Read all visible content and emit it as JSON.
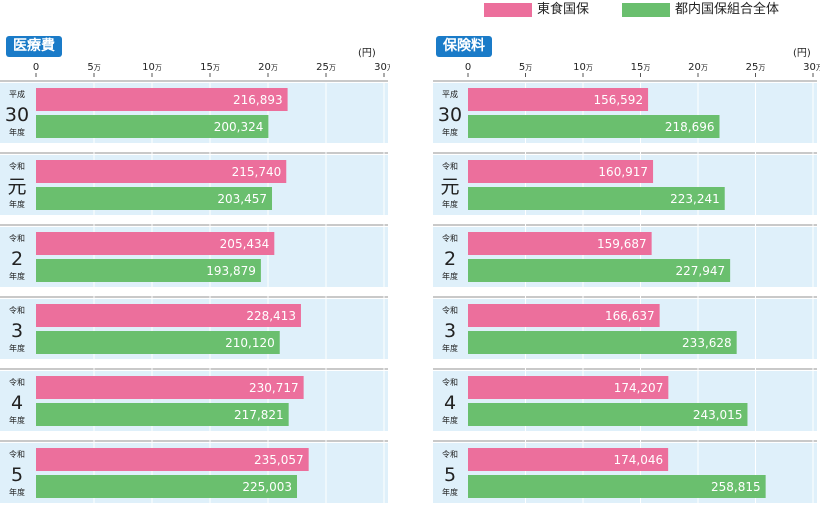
{
  "legend": [
    {
      "label": "東食国保",
      "color": "#ec6f9c"
    },
    {
      "label": "都内国保組合全体",
      "color": "#6abf6e"
    }
  ],
  "colors": {
    "band": "#dff0fa",
    "separator": "#c9c9c9",
    "grid": "#ffffff",
    "label_text": "#ffffff"
  },
  "chart_data": [
    {
      "type": "bar",
      "orientation": "horizontal",
      "title": "医療費",
      "unit": "(円)",
      "xlim": [
        0,
        300000
      ],
      "ticks": [
        {
          "value": 0,
          "label": "0",
          "suffix": ""
        },
        {
          "value": 50000,
          "label": "5",
          "suffix": "万"
        },
        {
          "value": 100000,
          "label": "10",
          "suffix": "万"
        },
        {
          "value": 150000,
          "label": "15",
          "suffix": "万"
        },
        {
          "value": 200000,
          "label": "20",
          "suffix": "万"
        },
        {
          "value": 250000,
          "label": "25",
          "suffix": "万"
        },
        {
          "value": 300000,
          "label": "30",
          "suffix": "万"
        }
      ],
      "categories": [
        {
          "era": "平成",
          "year": "30",
          "suffix": "年度"
        },
        {
          "era": "令和",
          "year": "元",
          "suffix": "年度"
        },
        {
          "era": "令和",
          "year": "2",
          "suffix": "年度"
        },
        {
          "era": "令和",
          "year": "3",
          "suffix": "年度"
        },
        {
          "era": "令和",
          "year": "4",
          "suffix": "年度"
        },
        {
          "era": "令和",
          "year": "5",
          "suffix": "年度"
        }
      ],
      "series": [
        {
          "name": "東食国保",
          "color": "#ec6f9c",
          "values": [
            216893,
            215740,
            205434,
            228413,
            230717,
            235057
          ],
          "labels": [
            "216,893",
            "215,740",
            "205,434",
            "228,413",
            "230,717",
            "235,057"
          ]
        },
        {
          "name": "都内国保組合全体",
          "color": "#6abf6e",
          "values": [
            200324,
            203457,
            193879,
            210120,
            217821,
            225003
          ],
          "labels": [
            "200,324",
            "203,457",
            "193,879",
            "210,120",
            "217,821",
            "225,003"
          ]
        }
      ]
    },
    {
      "type": "bar",
      "orientation": "horizontal",
      "title": "保険料",
      "unit": "(円)",
      "xlim": [
        0,
        300000
      ],
      "ticks": [
        {
          "value": 0,
          "label": "0",
          "suffix": ""
        },
        {
          "value": 50000,
          "label": "5",
          "suffix": "万"
        },
        {
          "value": 100000,
          "label": "10",
          "suffix": "万"
        },
        {
          "value": 150000,
          "label": "15",
          "suffix": "万"
        },
        {
          "value": 200000,
          "label": "20",
          "suffix": "万"
        },
        {
          "value": 250000,
          "label": "25",
          "suffix": "万"
        },
        {
          "value": 300000,
          "label": "30",
          "suffix": "万"
        }
      ],
      "categories": [
        {
          "era": "平成",
          "year": "30",
          "suffix": "年度"
        },
        {
          "era": "令和",
          "year": "元",
          "suffix": "年度"
        },
        {
          "era": "令和",
          "year": "2",
          "suffix": "年度"
        },
        {
          "era": "令和",
          "year": "3",
          "suffix": "年度"
        },
        {
          "era": "令和",
          "year": "4",
          "suffix": "年度"
        },
        {
          "era": "令和",
          "year": "5",
          "suffix": "年度"
        }
      ],
      "series": [
        {
          "name": "東食国保",
          "color": "#ec6f9c",
          "values": [
            156592,
            160917,
            159687,
            166637,
            174207,
            174046
          ],
          "labels": [
            "156,592",
            "160,917",
            "159,687",
            "166,637",
            "174,207",
            "174,046"
          ]
        },
        {
          "name": "都内国保組合全体",
          "color": "#6abf6e",
          "values": [
            218696,
            223241,
            227947,
            233628,
            243015,
            258815
          ],
          "labels": [
            "218,696",
            "223,241",
            "227,947",
            "233,628",
            "243,015",
            "258,815"
          ]
        }
      ]
    }
  ]
}
